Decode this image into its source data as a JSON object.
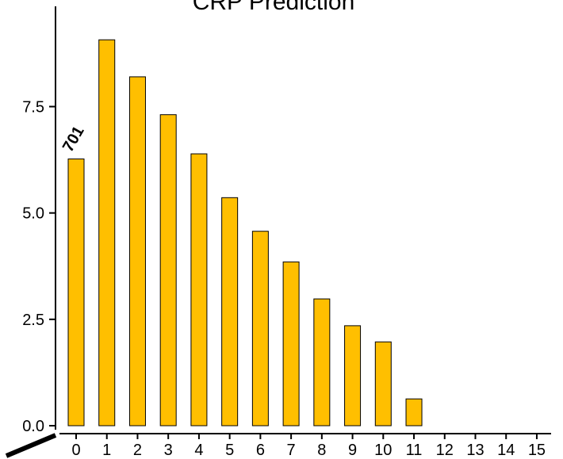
{
  "chart_data": {
    "type": "bar",
    "title": "CRP Prediction",
    "xlabel": "",
    "ylabel": "",
    "categories": [
      "0",
      "1",
      "2",
      "3",
      "4",
      "5",
      "6",
      "7",
      "8",
      "9",
      "10",
      "11",
      "12",
      "13",
      "14",
      "15"
    ],
    "values": [
      6.27,
      9.07,
      8.2,
      7.31,
      6.39,
      5.36,
      4.57,
      3.85,
      2.98,
      2.35,
      1.97,
      0.63,
      0,
      0,
      0,
      0
    ],
    "ylim": [
      0,
      9.3
    ],
    "yticks": [
      "0.0",
      "2.5",
      "5.0",
      "7.5"
    ],
    "ytick_values": [
      0,
      2.5,
      5.0,
      7.5
    ],
    "bar_color": "#FFBF00",
    "annotation": {
      "text": "701",
      "category": "0"
    },
    "grid": false,
    "legend": "none"
  }
}
